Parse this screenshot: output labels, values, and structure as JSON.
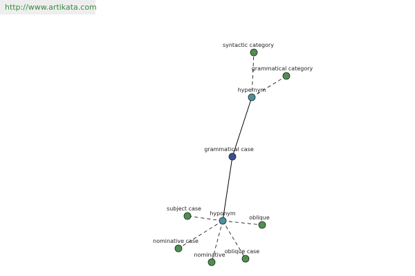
{
  "header": {
    "url": "http://www.artikata.com"
  },
  "nodes": [
    {
      "label": "syntactic category"
    },
    {
      "label": "grammatical category"
    },
    {
      "label": "hypernym"
    },
    {
      "label": "grammatical case"
    },
    {
      "label": "hyponym"
    },
    {
      "label": "subject case"
    },
    {
      "label": "oblique"
    },
    {
      "label": "nominative case"
    },
    {
      "label": "nominative"
    },
    {
      "label": "oblique case"
    }
  ]
}
